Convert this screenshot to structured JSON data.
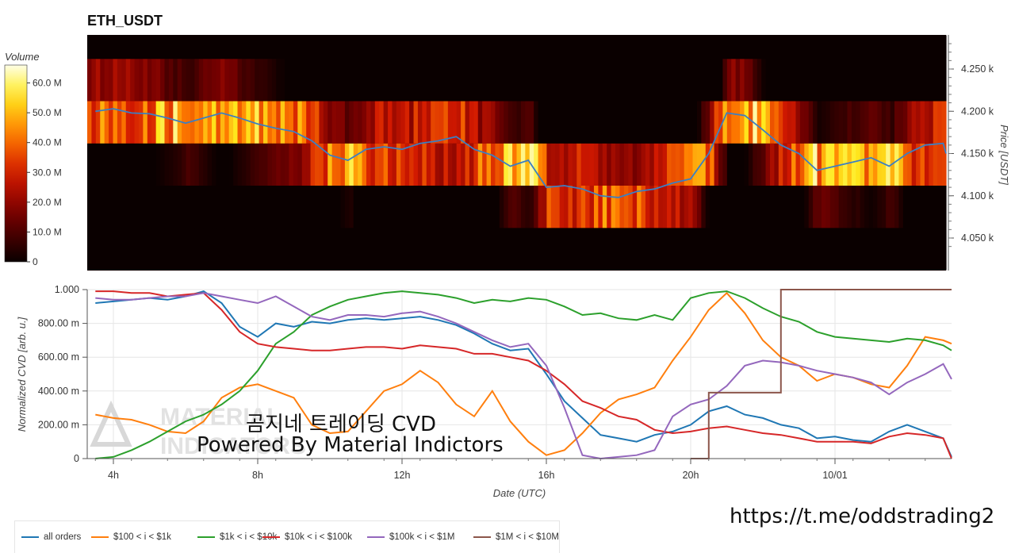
{
  "title": "ETH_USDT",
  "colorbar": {
    "label": "Volume",
    "ticks": [
      "60.0 M",
      "50.0 M",
      "40.0 M",
      "30.0 M",
      "20.0 M",
      "10.0 M",
      "0"
    ]
  },
  "price_axis": {
    "label": "Price [USDT]",
    "ticks": [
      "4.250 k",
      "4.200 k",
      "4.150 k",
      "4.100 k",
      "4.050 k"
    ]
  },
  "cvd_axis": {
    "label": "Normalized CVD [arb. u.]",
    "ticks": [
      "1.000",
      "800.00 m",
      "600.00 m",
      "400.00 m",
      "200.00 m",
      "0"
    ]
  },
  "x_axis": {
    "label": "Date (UTC)",
    "ticks": [
      "4h",
      "8h",
      "12h",
      "16h",
      "20h",
      "10/01"
    ]
  },
  "legend": [
    {
      "label": "all orders",
      "color": "#1f77b4"
    },
    {
      "label": "$100 < i < $1k",
      "color": "#ff7f0e"
    },
    {
      "label": "$1k < i < $10k",
      "color": "#2ca02c"
    },
    {
      "label": "$10k < i < $100k",
      "color": "#d62728"
    },
    {
      "label": "$100k < i < $1M",
      "color": "#9467bd"
    },
    {
      "label": "$1M < i < $10M",
      "color": "#8c564b"
    }
  ],
  "watermark": {
    "line1": "곰지네 트레이딩 CVD",
    "line2": "Powered By Material Indictors",
    "logo_text": "MATERIAL INDICATORS"
  },
  "url_text": "https://t.me/oddstrading2",
  "chart_data": [
    {
      "type": "heatmap",
      "title": "ETH_USDT",
      "ylabel": "Price [USDT]",
      "colorbar_label": "Volume",
      "colorbar_range": [
        0,
        65
      ],
      "price_bins": [
        4025,
        4075,
        4125,
        4175,
        4225,
        4275
      ],
      "x_range": [
        3.5,
        13.5
      ],
      "series": [
        {
          "name": "Price",
          "x": [
            3.5,
            4.0,
            4.5,
            5.0,
            5.5,
            6.0,
            6.5,
            7.0,
            7.5,
            8.0,
            8.5,
            9.0,
            9.5,
            10.0,
            10.5,
            11.0,
            11.5,
            12.0,
            12.5,
            13.0,
            13.5,
            14.0,
            14.5,
            15.0,
            15.5,
            16.0,
            16.5,
            17.0,
            17.5,
            18.0,
            18.5,
            19.0,
            19.5,
            20.0,
            20.5,
            21.0,
            21.5,
            22.0,
            22.5,
            23.0,
            23.5,
            24.0,
            24.5,
            25.0,
            25.5,
            26.0,
            26.5,
            27.0,
            27.5
          ],
          "y": [
            4200,
            4203,
            4198,
            4197,
            4192,
            4186,
            4192,
            4198,
            4192,
            4185,
            4180,
            4176,
            4165,
            4148,
            4142,
            4155,
            4158,
            4155,
            4162,
            4165,
            4170,
            4155,
            4148,
            4135,
            4142,
            4110,
            4112,
            4108,
            4100,
            4098,
            4105,
            4108,
            4115,
            4120,
            4150,
            4198,
            4195,
            4178,
            4160,
            4150,
            4130,
            4135,
            4140,
            4145,
            4135,
            4150,
            4160,
            4162,
            4150
          ]
        }
      ]
    },
    {
      "type": "line",
      "xlabel": "Date (UTC)",
      "ylabel": "Normalized CVD [arb. u.]",
      "ylim": [
        0,
        1
      ],
      "x": [
        3.5,
        4.0,
        4.5,
        5.0,
        5.5,
        6.0,
        6.5,
        7.0,
        7.5,
        8.0,
        8.5,
        9.0,
        9.5,
        10.0,
        10.5,
        11.0,
        11.5,
        12.0,
        12.5,
        13.0,
        13.5,
        14.0,
        14.5,
        15.0,
        15.5,
        16.0,
        16.5,
        17.0,
        17.5,
        18.0,
        18.5,
        19.0,
        19.5,
        20.0,
        20.5,
        21.0,
        21.5,
        22.0,
        22.5,
        23.0,
        23.5,
        24.0,
        24.5,
        25.0,
        25.5,
        26.0,
        26.5,
        27.0,
        27.5
      ],
      "series": [
        {
          "name": "all orders",
          "values": [
            0.92,
            0.93,
            0.94,
            0.95,
            0.94,
            0.96,
            0.99,
            0.92,
            0.78,
            0.72,
            0.8,
            0.78,
            0.81,
            0.8,
            0.82,
            0.83,
            0.82,
            0.83,
            0.84,
            0.82,
            0.79,
            0.74,
            0.68,
            0.64,
            0.65,
            0.5,
            0.34,
            0.24,
            0.14,
            0.12,
            0.1,
            0.14,
            0.16,
            0.2,
            0.28,
            0.31,
            0.26,
            0.24,
            0.2,
            0.18,
            0.12,
            0.13,
            0.11,
            0.1,
            0.16,
            0.2,
            0.16,
            0.12,
            0.01
          ]
        },
        {
          "name": "$100 < i < $1k",
          "values": [
            0.26,
            0.24,
            0.23,
            0.2,
            0.16,
            0.15,
            0.22,
            0.36,
            0.42,
            0.44,
            0.4,
            0.36,
            0.2,
            0.15,
            0.16,
            0.28,
            0.4,
            0.44,
            0.52,
            0.45,
            0.32,
            0.25,
            0.4,
            0.22,
            0.1,
            0.02,
            0.05,
            0.15,
            0.27,
            0.35,
            0.38,
            0.42,
            0.58,
            0.72,
            0.88,
            0.98,
            0.86,
            0.7,
            0.6,
            0.55,
            0.46,
            0.5,
            0.48,
            0.44,
            0.42,
            0.55,
            0.72,
            0.7,
            0.68
          ]
        },
        {
          "name": "$1k < i < $10k",
          "values": [
            0.0,
            0.01,
            0.05,
            0.1,
            0.16,
            0.22,
            0.26,
            0.32,
            0.4,
            0.52,
            0.68,
            0.75,
            0.85,
            0.9,
            0.94,
            0.96,
            0.98,
            0.99,
            0.98,
            0.97,
            0.95,
            0.92,
            0.94,
            0.93,
            0.95,
            0.94,
            0.9,
            0.85,
            0.86,
            0.83,
            0.82,
            0.85,
            0.82,
            0.95,
            0.98,
            0.99,
            0.95,
            0.89,
            0.84,
            0.81,
            0.75,
            0.72,
            0.71,
            0.7,
            0.69,
            0.71,
            0.7,
            0.67,
            0.64
          ]
        },
        {
          "name": "$10k < i < $100k",
          "values": [
            0.99,
            0.99,
            0.98,
            0.98,
            0.96,
            0.97,
            0.98,
            0.88,
            0.75,
            0.68,
            0.66,
            0.65,
            0.64,
            0.64,
            0.65,
            0.66,
            0.66,
            0.65,
            0.67,
            0.66,
            0.65,
            0.62,
            0.62,
            0.6,
            0.58,
            0.52,
            0.44,
            0.34,
            0.3,
            0.25,
            0.23,
            0.17,
            0.15,
            0.16,
            0.18,
            0.19,
            0.17,
            0.15,
            0.14,
            0.12,
            0.1,
            0.1,
            0.1,
            0.09,
            0.13,
            0.15,
            0.14,
            0.12,
            0.0
          ]
        },
        {
          "name": "$100k < i < $1M",
          "values": [
            0.95,
            0.94,
            0.94,
            0.95,
            0.96,
            0.96,
            0.98,
            0.96,
            0.94,
            0.92,
            0.96,
            0.9,
            0.84,
            0.82,
            0.85,
            0.85,
            0.84,
            0.86,
            0.87,
            0.84,
            0.8,
            0.75,
            0.7,
            0.66,
            0.68,
            0.55,
            0.3,
            0.02,
            0.0,
            0.01,
            0.02,
            0.05,
            0.25,
            0.32,
            0.35,
            0.43,
            0.55,
            0.58,
            0.57,
            0.55,
            0.52,
            0.5,
            0.48,
            0.45,
            0.38,
            0.45,
            0.5,
            0.56,
            0.47
          ]
        },
        {
          "name": "$1M < i < $10M",
          "values": [
            null,
            null,
            null,
            null,
            null,
            null,
            null,
            null,
            null,
            null,
            null,
            null,
            null,
            null,
            null,
            null,
            null,
            null,
            null,
            null,
            null,
            null,
            null,
            null,
            null,
            null,
            null,
            null,
            null,
            null,
            null,
            null,
            null,
            0.0,
            0.39,
            0.39,
            0.39,
            0.39,
            1.0,
            1.0,
            1.0,
            1.0,
            1.0,
            1.0,
            1.0,
            1.0,
            1.0,
            1.0,
            1.0
          ]
        }
      ]
    }
  ]
}
